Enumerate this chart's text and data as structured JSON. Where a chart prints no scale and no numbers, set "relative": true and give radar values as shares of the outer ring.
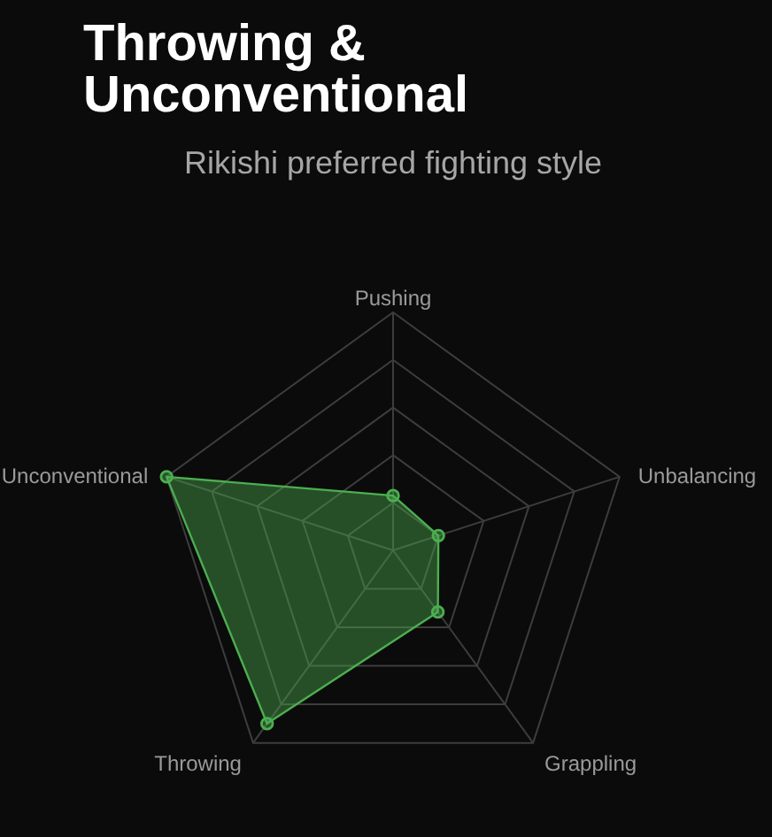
{
  "chart_data": {
    "type": "radar",
    "title": "Throwing & Unconventional",
    "subtitle": "Rikishi preferred fighting style",
    "categories": [
      "Pushing",
      "Unbalancing",
      "Grappling",
      "Throwing",
      "Unconventional"
    ],
    "series": [
      {
        "color": "#4caf50",
        "values": [
          0.23,
          0.2,
          0.32,
          0.9,
          1
        ]
      }
    ],
    "relative": true,
    "grid": true,
    "marker": "circle"
  }
}
